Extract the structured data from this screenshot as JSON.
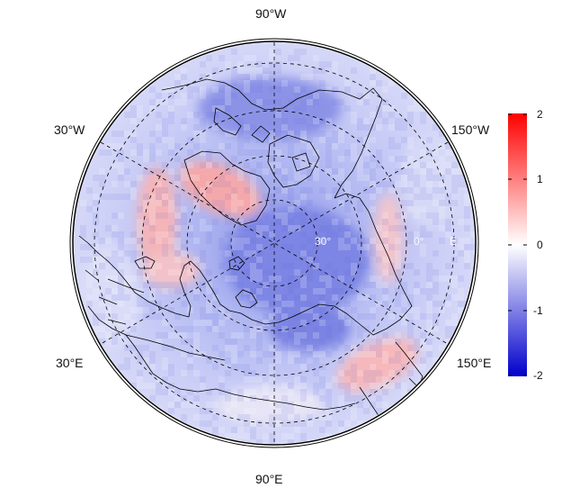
{
  "map": {
    "projection": "north-polar-stereographic",
    "field_colors": {
      "negative": "#0000cc",
      "neutral": "#ffffff",
      "positive": "#ff0000"
    },
    "longitude_labels": {
      "top": "90°W",
      "bottom": "90°E",
      "upper_left": "30°W",
      "upper_right": "150°W",
      "lower_left": "30°E",
      "lower_right": "150°E"
    },
    "latitude_labels": [
      "30°",
      "0°",
      "E"
    ]
  },
  "colorbar": {
    "ticks": [
      "2",
      "1",
      "0",
      "-1",
      "-2"
    ],
    "range": [
      -2,
      2
    ],
    "colors": {
      "top": "#ff0000",
      "middle": "#ffffff",
      "bottom": "#0000cc"
    }
  }
}
